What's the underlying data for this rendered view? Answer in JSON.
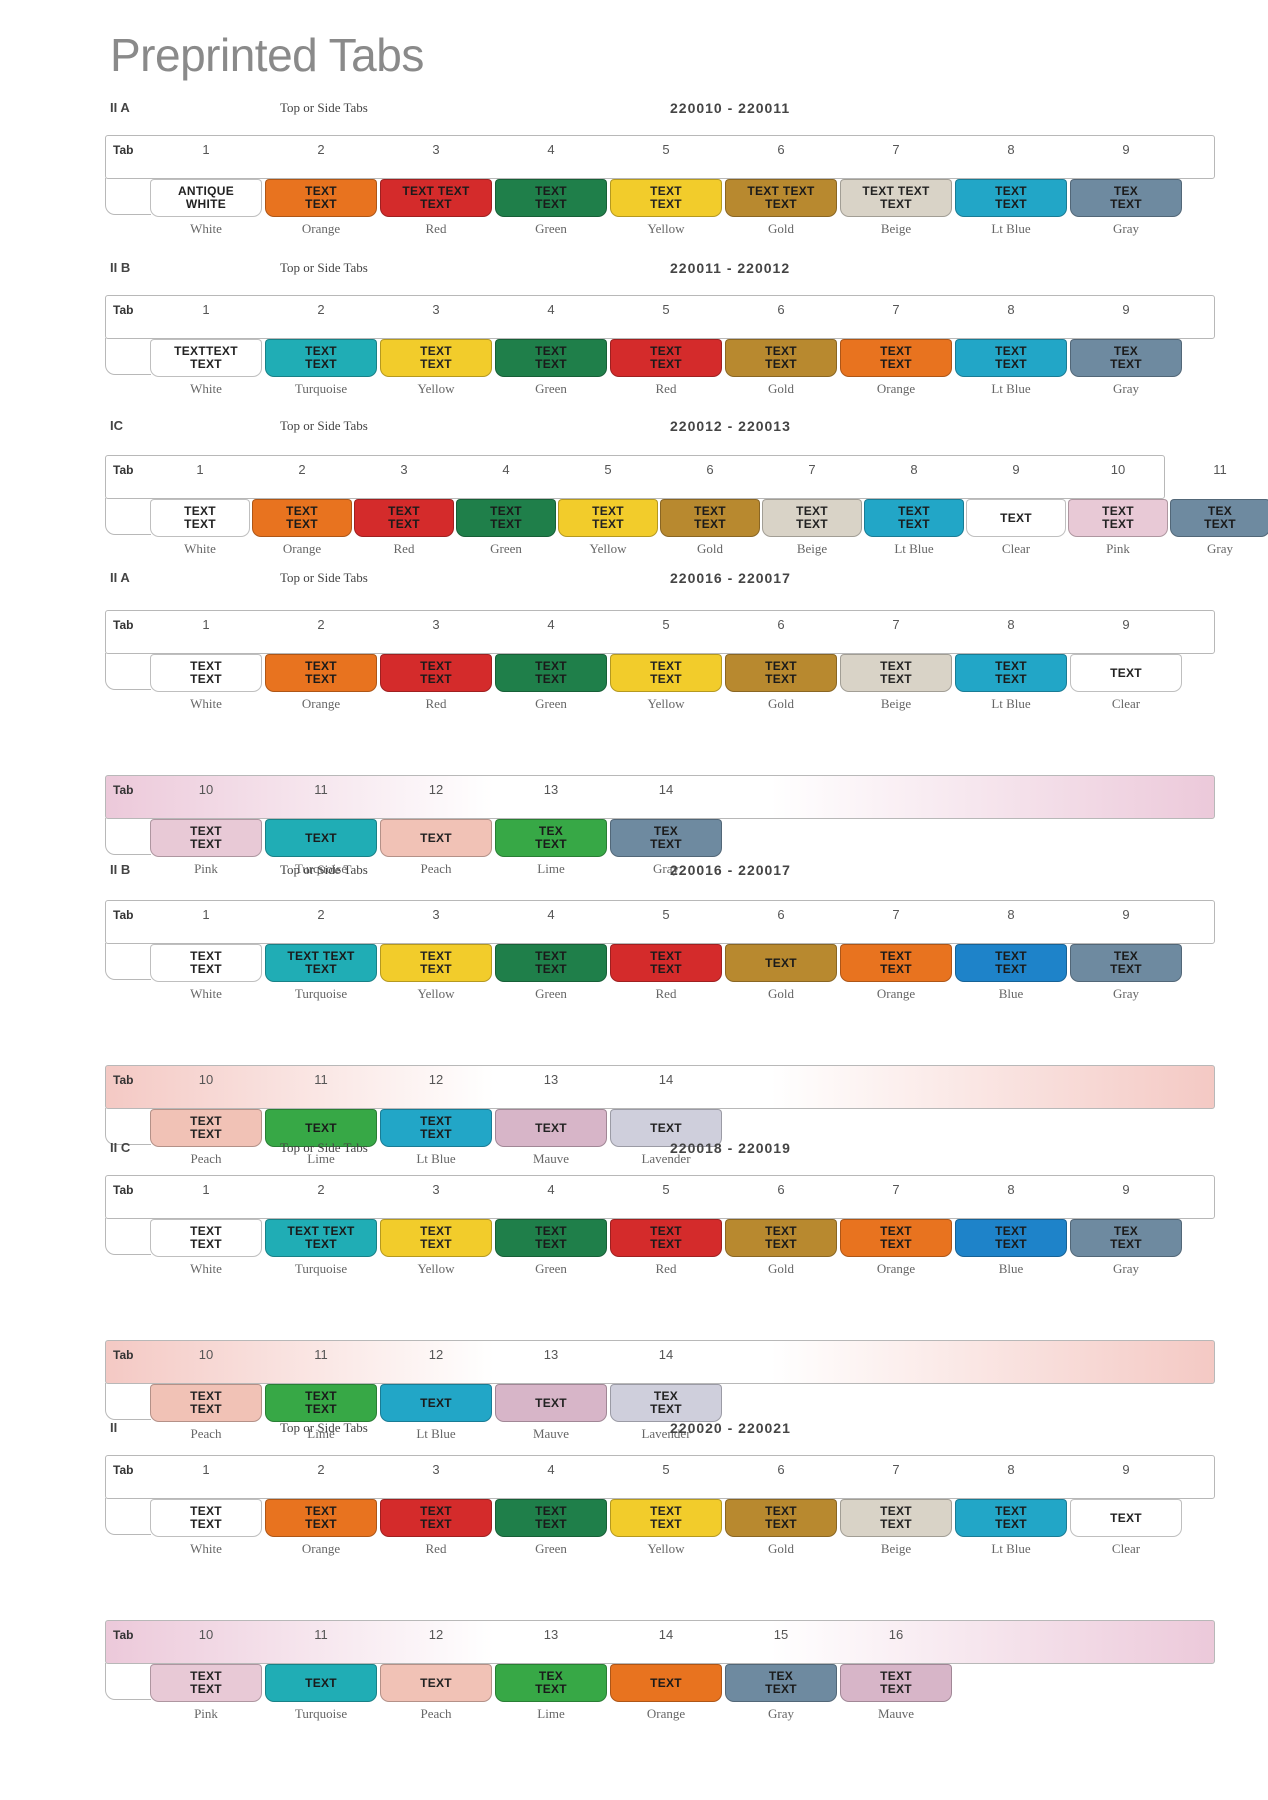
{
  "page_title": "Preprinted Tabs",
  "colors": {
    "White": "#ffffff",
    "Orange": "#e8731f",
    "Red": "#d42b2b",
    "Green": "#1f7f4a",
    "Yellow": "#f2cc2b",
    "Gold": "#b8892f",
    "Beige": "#d9d3c7",
    "Lt Blue": "#22a6c7",
    "Gray": "#6e8aa0",
    "Turquoise": "#20adb5",
    "Lime": "#37a846",
    "Peach": "#f1c2b6",
    "Pink": "#e8c9d6",
    "Mauve": "#d7b5c8",
    "Lavender": "#cfcfdc",
    "Blue": "#1e83c9"
  },
  "sections": [
    {
      "code": "II A",
      "description": "Top or Side Tabs",
      "range": "220010 - 220011",
      "strips": [
        {
          "label": "Tab",
          "bar_tint": "#ffffff",
          "numbers": [
            "1",
            "2",
            "3",
            "4",
            "5",
            "6",
            "7",
            "8",
            "9"
          ],
          "tabs": [
            {
              "text": "ANTIQUE\nWHITE",
              "color": "White",
              "name": "White"
            },
            {
              "text": "TEXT\nTEXT",
              "color": "Orange",
              "name": "Orange"
            },
            {
              "text": "TEXT TEXT\nTEXT",
              "color": "Red",
              "name": "Red"
            },
            {
              "text": "TEXT\nTEXT",
              "color": "Green",
              "name": "Green"
            },
            {
              "text": "TEXT\nTEXT",
              "color": "Yellow",
              "name": "Yellow"
            },
            {
              "text": "TEXT TEXT\nTEXT",
              "color": "Gold",
              "name": "Gold"
            },
            {
              "text": "TEXT TEXT\nTEXT",
              "color": "Beige",
              "name": "Beige"
            },
            {
              "text": "TEXT\nTEXT",
              "color": "Lt Blue",
              "name": "Lt Blue"
            },
            {
              "text": "TEX\nTEXT",
              "color": "Gray",
              "name": "Gray"
            }
          ]
        }
      ]
    },
    {
      "code": "II B",
      "description": "Top or Side Tabs",
      "range": "220011 - 220012",
      "strips": [
        {
          "label": "Tab",
          "bar_tint": "#ffffff",
          "numbers": [
            "1",
            "2",
            "3",
            "4",
            "5",
            "6",
            "7",
            "8",
            "9"
          ],
          "tabs": [
            {
              "text": "TEXTTEXT\nTEXT",
              "color": "White",
              "name": "White"
            },
            {
              "text": "TEXT\nTEXT",
              "color": "Turquoise",
              "name": "Turquoise"
            },
            {
              "text": "TEXT\nTEXT",
              "color": "Yellow",
              "name": "Yellow"
            },
            {
              "text": "TEXT\nTEXT",
              "color": "Green",
              "name": "Green"
            },
            {
              "text": "TEXT\nTEXT",
              "color": "Red",
              "name": "Red"
            },
            {
              "text": "TEXT\nTEXT",
              "color": "Gold",
              "name": "Gold"
            },
            {
              "text": "TEXT\nTEXT",
              "color": "Orange",
              "name": "Orange"
            },
            {
              "text": "TEXT\nTEXT",
              "color": "Lt Blue",
              "name": "Lt Blue"
            },
            {
              "text": "TEX\nTEXT",
              "color": "Gray",
              "name": "Gray"
            }
          ]
        }
      ]
    },
    {
      "code": "IC",
      "description": "Top or Side Tabs",
      "range": "220012 - 220013",
      "strips": [
        {
          "label": "Tab",
          "bar_tint": "#ffffff",
          "numbers": [
            "1",
            "2",
            "3",
            "4",
            "5",
            "6",
            "7",
            "8",
            "9",
            "10",
            "11"
          ],
          "tabs": [
            {
              "text": "TEXT\nTEXT",
              "color": "White",
              "name": "White"
            },
            {
              "text": "TEXT\nTEXT",
              "color": "Orange",
              "name": "Orange"
            },
            {
              "text": "TEXT\nTEXT",
              "color": "Red",
              "name": "Red"
            },
            {
              "text": "TEXT\nTEXT",
              "color": "Green",
              "name": "Green"
            },
            {
              "text": "TEXT\nTEXT",
              "color": "Yellow",
              "name": "Yellow"
            },
            {
              "text": "TEXT\nTEXT",
              "color": "Gold",
              "name": "Gold"
            },
            {
              "text": "TEXT\nTEXT",
              "color": "Beige",
              "name": "Beige"
            },
            {
              "text": "TEXT\nTEXT",
              "color": "Lt Blue",
              "name": "Lt Blue"
            },
            {
              "text": "TEXT",
              "color": "White",
              "name": "Clear"
            },
            {
              "text": "TEXT\nTEXT",
              "color": "Pink",
              "name": "Pink"
            },
            {
              "text": "TEX\nTEXT",
              "color": "Gray",
              "name": "Gray"
            }
          ]
        }
      ]
    },
    {
      "code": "II A",
      "description": "Top or Side Tabs",
      "range": "220016 - 220017",
      "strips": [
        {
          "label": "Tab",
          "bar_tint": "#ffffff",
          "numbers": [
            "1",
            "2",
            "3",
            "4",
            "5",
            "6",
            "7",
            "8",
            "9"
          ],
          "tabs": [
            {
              "text": "TEXT\nTEXT",
              "color": "White",
              "name": "White"
            },
            {
              "text": "TEXT\nTEXT",
              "color": "Orange",
              "name": "Orange"
            },
            {
              "text": "TEXT\nTEXT",
              "color": "Red",
              "name": "Red"
            },
            {
              "text": "TEXT\nTEXT",
              "color": "Green",
              "name": "Green"
            },
            {
              "text": "TEXT\nTEXT",
              "color": "Yellow",
              "name": "Yellow"
            },
            {
              "text": "TEXT\nTEXT",
              "color": "Gold",
              "name": "Gold"
            },
            {
              "text": "TEXT\nTEXT",
              "color": "Beige",
              "name": "Beige"
            },
            {
              "text": "TEXT\nTEXT",
              "color": "Lt Blue",
              "name": "Lt Blue"
            },
            {
              "text": "TEXT",
              "color": "White",
              "name": "Clear"
            }
          ]
        },
        {
          "label": "Tab",
          "bar_tint": "#ecc9da",
          "numbers": [
            "10",
            "11",
            "12",
            "13",
            "14"
          ],
          "tabs": [
            {
              "text": "TEXT\nTEXT",
              "color": "Pink",
              "name": "Pink"
            },
            {
              "text": "TEXT",
              "color": "Turquoise",
              "name": "Turquoise"
            },
            {
              "text": "TEXT",
              "color": "Peach",
              "name": "Peach"
            },
            {
              "text": "TEX\nTEXT",
              "color": "Lime",
              "name": "Lime"
            },
            {
              "text": "TEX\nTEXT",
              "color": "Gray",
              "name": "Gray"
            }
          ]
        }
      ]
    },
    {
      "code": "II B",
      "description": "Top or Side Tabs",
      "range": "220016 - 220017",
      "strips": [
        {
          "label": "Tab",
          "bar_tint": "#ffffff",
          "numbers": [
            "1",
            "2",
            "3",
            "4",
            "5",
            "6",
            "7",
            "8",
            "9"
          ],
          "tabs": [
            {
              "text": "TEXT\nTEXT",
              "color": "White",
              "name": "White"
            },
            {
              "text": "TEXT TEXT\nTEXT",
              "color": "Turquoise",
              "name": "Turquoise"
            },
            {
              "text": "TEXT\nTEXT",
              "color": "Yellow",
              "name": "Yellow"
            },
            {
              "text": "TEXT\nTEXT",
              "color": "Green",
              "name": "Green"
            },
            {
              "text": "TEXT\nTEXT",
              "color": "Red",
              "name": "Red"
            },
            {
              "text": "TEXT",
              "color": "Gold",
              "name": "Gold"
            },
            {
              "text": "TEXT\nTEXT",
              "color": "Orange",
              "name": "Orange"
            },
            {
              "text": "TEXT\nTEXT",
              "color": "Blue",
              "name": "Blue"
            },
            {
              "text": "TEX\nTEXT",
              "color": "Gray",
              "name": "Gray"
            }
          ]
        },
        {
          "label": "Tab",
          "bar_tint": "#f4c9c4",
          "numbers": [
            "10",
            "11",
            "12",
            "13",
            "14"
          ],
          "tabs": [
            {
              "text": "TEXT\nTEXT",
              "color": "Peach",
              "name": "Peach"
            },
            {
              "text": "TEXT",
              "color": "Lime",
              "name": "Lime"
            },
            {
              "text": "TEXT\nTEXT",
              "color": "Lt Blue",
              "name": "Lt Blue"
            },
            {
              "text": "TEXT",
              "color": "Mauve",
              "name": "Mauve"
            },
            {
              "text": "TEXT",
              "color": "Lavender",
              "name": "Lavender"
            }
          ]
        }
      ]
    },
    {
      "code": "II C",
      "description": "Top or Side Tabs",
      "range": "220018 - 220019",
      "strips": [
        {
          "label": "Tab",
          "bar_tint": "#ffffff",
          "numbers": [
            "1",
            "2",
            "3",
            "4",
            "5",
            "6",
            "7",
            "8",
            "9"
          ],
          "tabs": [
            {
              "text": "TEXT\nTEXT",
              "color": "White",
              "name": "White"
            },
            {
              "text": "TEXT TEXT\nTEXT",
              "color": "Turquoise",
              "name": "Turquoise"
            },
            {
              "text": "TEXT\nTEXT",
              "color": "Yellow",
              "name": "Yellow"
            },
            {
              "text": "TEXT\nTEXT",
              "color": "Green",
              "name": "Green"
            },
            {
              "text": "TEXT\nTEXT",
              "color": "Red",
              "name": "Red"
            },
            {
              "text": "TEXT\nTEXT",
              "color": "Gold",
              "name": "Gold"
            },
            {
              "text": "TEXT\nTEXT",
              "color": "Orange",
              "name": "Orange"
            },
            {
              "text": "TEXT\nTEXT",
              "color": "Blue",
              "name": "Blue"
            },
            {
              "text": "TEX\nTEXT",
              "color": "Gray",
              "name": "Gray"
            }
          ]
        },
        {
          "label": "Tab",
          "bar_tint": "#f4c9c4",
          "numbers": [
            "10",
            "11",
            "12",
            "13",
            "14"
          ],
          "tabs": [
            {
              "text": "TEXT\nTEXT",
              "color": "Peach",
              "name": "Peach"
            },
            {
              "text": "TEXT\nTEXT",
              "color": "Lime",
              "name": "Lime"
            },
            {
              "text": "TEXT",
              "color": "Lt Blue",
              "name": "Lt Blue"
            },
            {
              "text": "TEXT",
              "color": "Mauve",
              "name": "Mauve"
            },
            {
              "text": "TEX\nTEXT",
              "color": "Lavender",
              "name": "Lavender"
            }
          ]
        }
      ]
    },
    {
      "code": "II",
      "description": "Top or Side Tabs",
      "range": "220020 - 220021",
      "strips": [
        {
          "label": "Tab",
          "bar_tint": "#ffffff",
          "numbers": [
            "1",
            "2",
            "3",
            "4",
            "5",
            "6",
            "7",
            "8",
            "9"
          ],
          "tabs": [
            {
              "text": "TEXT\nTEXT",
              "color": "White",
              "name": "White"
            },
            {
              "text": "TEXT\nTEXT",
              "color": "Orange",
              "name": "Orange"
            },
            {
              "text": "TEXT\nTEXT",
              "color": "Red",
              "name": "Red"
            },
            {
              "text": "TEXT\nTEXT",
              "color": "Green",
              "name": "Green"
            },
            {
              "text": "TEXT\nTEXT",
              "color": "Yellow",
              "name": "Yellow"
            },
            {
              "text": "TEXT\nTEXT",
              "color": "Gold",
              "name": "Gold"
            },
            {
              "text": "TEXT\nTEXT",
              "color": "Beige",
              "name": "Beige"
            },
            {
              "text": "TEXT\nTEXT",
              "color": "Lt Blue",
              "name": "Lt Blue"
            },
            {
              "text": "TEXT",
              "color": "White",
              "name": "Clear"
            }
          ]
        },
        {
          "label": "Tab",
          "bar_tint": "#ecc9da",
          "numbers": [
            "10",
            "11",
            "12",
            "13",
            "14",
            "15",
            "16"
          ],
          "tabs": [
            {
              "text": "TEXT\nTEXT",
              "color": "Pink",
              "name": "Pink"
            },
            {
              "text": "TEXT",
              "color": "Turquoise",
              "name": "Turquoise"
            },
            {
              "text": "TEXT",
              "color": "Peach",
              "name": "Peach"
            },
            {
              "text": "TEX\nTEXT",
              "color": "Lime",
              "name": "Lime"
            },
            {
              "text": "TEXT",
              "color": "Orange",
              "name": "Orange"
            },
            {
              "text": "TEX\nTEXT",
              "color": "Gray",
              "name": "Gray"
            },
            {
              "text": "TEXT\nTEXT",
              "color": "Mauve",
              "name": "Mauve"
            }
          ]
        }
      ]
    }
  ]
}
